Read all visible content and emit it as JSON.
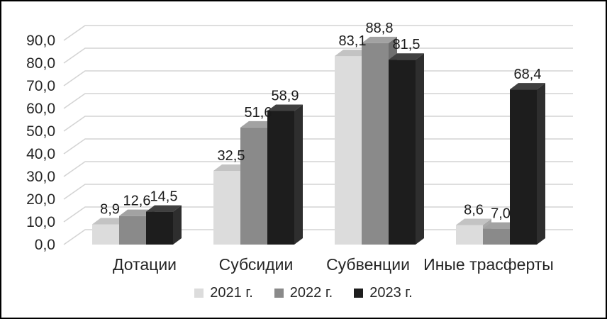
{
  "figure": {
    "background": "#ffffff",
    "border_color": "#000000"
  },
  "chart_data": {
    "type": "bar",
    "variant": "3d-clustered-column",
    "title": "",
    "xlabel": "",
    "ylabel": "",
    "categories": [
      "Дотации",
      "Субсидии",
      "Субвенции",
      "Иные трасферты"
    ],
    "series": [
      {
        "name": "2021 г.",
        "values": [
          8.9,
          32.5,
          83.1,
          8.6
        ],
        "value_labels": [
          "8,9",
          "32,5",
          "83,1",
          "8,6"
        ],
        "colors": {
          "front": "#dcdcdc",
          "top": "#c3c3c3",
          "side": "#a8a8a8"
        }
      },
      {
        "name": "2022 г.",
        "values": [
          12.6,
          51.6,
          88.8,
          7.0
        ],
        "value_labels": [
          "12,6",
          "51,6",
          "88,8",
          "7,0"
        ],
        "colors": {
          "front": "#8a8a8a",
          "top": "#a2a2a2",
          "side": "#6f6f6f"
        }
      },
      {
        "name": "2023 г.",
        "values": [
          14.5,
          58.9,
          81.5,
          68.4
        ],
        "value_labels": [
          "14,5",
          "58,9",
          "81,5",
          "68,4"
        ],
        "colors": {
          "front": "#1d1d1d",
          "top": "#404040",
          "side": "#2e2e2e"
        }
      }
    ],
    "y_axis": {
      "min": 0,
      "max": 90,
      "step": 10,
      "tick_labels": [
        "0,0",
        "10,0",
        "20,0",
        "30,0",
        "40,0",
        "50,0",
        "60,0",
        "70,0",
        "80,0",
        "90,0"
      ]
    },
    "grid": true,
    "gridline_color": "#d3d3d3",
    "text_color": "#262626",
    "decimal_separator": ",",
    "legend": {
      "position": "bottom",
      "items": [
        "2021 г.",
        "2022 г.",
        "2023 г."
      ]
    }
  }
}
